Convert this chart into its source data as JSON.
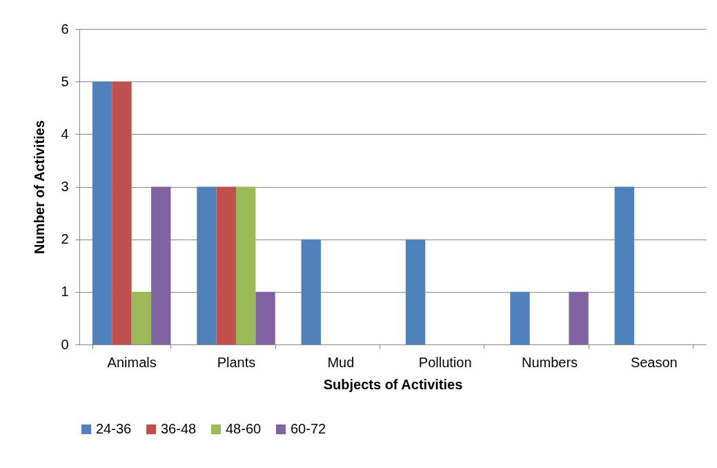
{
  "chart_data": {
    "type": "bar",
    "xlabel": "Subjects of Activities",
    "ylabel": "Number of Activities",
    "categories": [
      "Animals",
      "Plants",
      "Mud",
      "Pollution",
      "Numbers",
      "Season"
    ],
    "series": [
      {
        "name": "24-36",
        "color": "#4f81bd",
        "values": [
          5,
          3,
          2,
          2,
          1,
          3
        ]
      },
      {
        "name": "36-48",
        "color": "#c0504d",
        "values": [
          5,
          3,
          0,
          0,
          0,
          0
        ]
      },
      {
        "name": "48-60",
        "color": "#9bbb59",
        "values": [
          1,
          3,
          0,
          0,
          0,
          0
        ]
      },
      {
        "name": "60-72",
        "color": "#8064a2",
        "values": [
          3,
          1,
          0,
          0,
          1,
          0
        ]
      }
    ],
    "ylim": [
      0,
      6
    ],
    "yticks": [
      0,
      1,
      2,
      3,
      4,
      5,
      6
    ],
    "grid": "y",
    "legend": "bottom"
  }
}
